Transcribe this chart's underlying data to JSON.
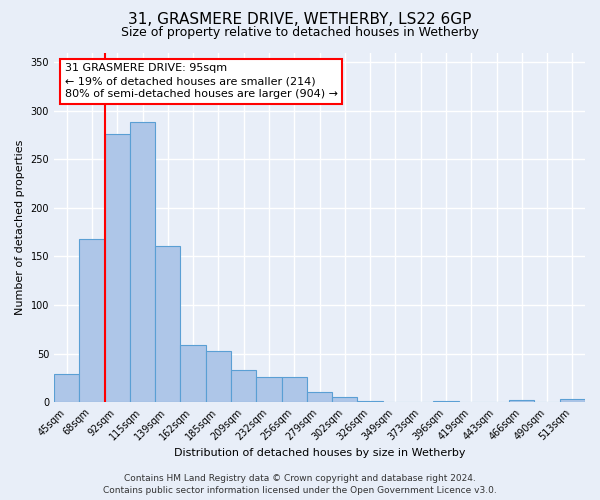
{
  "title": "31, GRASMERE DRIVE, WETHERBY, LS22 6GP",
  "subtitle": "Size of property relative to detached houses in Wetherby",
  "xlabel": "Distribution of detached houses by size in Wetherby",
  "ylabel": "Number of detached properties",
  "bin_labels": [
    "45sqm",
    "68sqm",
    "92sqm",
    "115sqm",
    "139sqm",
    "162sqm",
    "185sqm",
    "209sqm",
    "232sqm",
    "256sqm",
    "279sqm",
    "302sqm",
    "326sqm",
    "349sqm",
    "373sqm",
    "396sqm",
    "419sqm",
    "443sqm",
    "466sqm",
    "490sqm",
    "513sqm"
  ],
  "bar_heights": [
    29,
    168,
    276,
    288,
    161,
    59,
    53,
    33,
    26,
    26,
    10,
    5,
    1,
    0,
    0,
    1,
    0,
    0,
    2,
    0,
    3
  ],
  "bar_color": "#aec6e8",
  "bar_edgecolor": "#5a9fd4",
  "bar_linewidth": 0.8,
  "ylim": [
    0,
    360
  ],
  "yticks": [
    0,
    50,
    100,
    150,
    200,
    250,
    300,
    350
  ],
  "vline_color": "red",
  "vline_linewidth": 1.5,
  "vline_position": 2.5,
  "annotation_title": "31 GRASMERE DRIVE: 95sqm",
  "annotation_line1": "← 19% of detached houses are smaller (214)",
  "annotation_line2": "80% of semi-detached houses are larger (904) →",
  "footer1": "Contains HM Land Registry data © Crown copyright and database right 2024.",
  "footer2": "Contains public sector information licensed under the Open Government Licence v3.0.",
  "bg_color": "#e8eef8",
  "plot_bg_color": "#e8eef8",
  "grid_color": "white",
  "title_fontsize": 11,
  "subtitle_fontsize": 9,
  "axis_label_fontsize": 8,
  "tick_fontsize": 7,
  "footer_fontsize": 6.5,
  "ann_fontsize": 8
}
